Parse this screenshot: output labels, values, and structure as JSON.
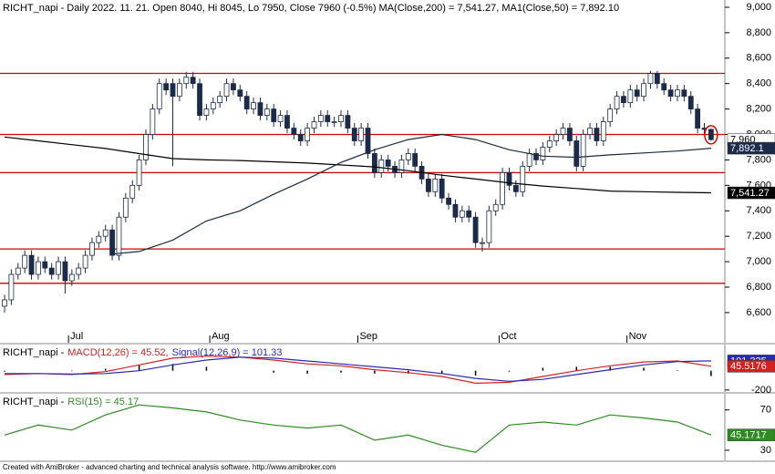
{
  "chart_data": [
    {
      "type": "candlestick",
      "title": "RICHT_napi - Daily 2022. 11. 21. Open 8040, Hi 8045, Lo 7950, Close 7960 (-0.5%) MA(Close,200) = 7,541.27, MA1(Close,50) = 7,892.10",
      "xlim": [
        -0.68,
        107.05
      ],
      "xticks": [
        {
          "value": 9.5,
          "label": "Jul"
        },
        {
          "value": 30.5,
          "label": "Aug"
        },
        {
          "value": 52.5,
          "label": "Sep"
        },
        {
          "value": 73.5,
          "label": "Oct"
        },
        {
          "value": 92.5,
          "label": "Nov"
        }
      ],
      "ylim": [
        6363,
        9057
      ],
      "yticks": [
        {
          "value": 6600,
          "label": "6,600"
        },
        {
          "value": 6800,
          "label": "6,800"
        },
        {
          "value": 7000,
          "label": "7,000"
        },
        {
          "value": 7200,
          "label": "7,200"
        },
        {
          "value": 7400,
          "label": "7,400"
        },
        {
          "value": 7600,
          "label": "7,600"
        },
        {
          "value": 7800,
          "label": "7,800"
        },
        {
          "value": 8000,
          "label": "8,000"
        },
        {
          "value": 8200,
          "label": "8,200"
        },
        {
          "value": 8400,
          "label": "8,400"
        },
        {
          "value": 8600,
          "label": "8,600"
        },
        {
          "value": 8800,
          "label": "8,800"
        },
        {
          "value": 9000,
          "label": "9,000"
        }
      ],
      "open": [
        6650,
        6700,
        6900,
        6950,
        7050,
        6900,
        7000,
        6950,
        6900,
        7000,
        6850,
        6900,
        6950,
        7050,
        7150,
        7200,
        7250,
        7050,
        7350,
        7500,
        7600,
        7800,
        8000,
        8200,
        8400,
        8400,
        8300,
        8400,
        8450,
        8400,
        8150,
        8200,
        8250,
        8300,
        8400,
        8350,
        8300,
        8200,
        8250,
        8150,
        8200,
        8100,
        8150,
        8050,
        8000,
        7950,
        8050,
        8100,
        8150,
        8100,
        8100,
        8150,
        8050,
        7950,
        8050,
        7850,
        7700,
        7800,
        7750,
        7700,
        7800,
        7850,
        7750,
        7650,
        7550,
        7650,
        7500,
        7450,
        7350,
        7400,
        7350,
        7150,
        7150,
        7400,
        7450,
        7700,
        7600,
        7550,
        7750,
        7850,
        7800,
        7900,
        7950,
        8000,
        8050,
        7950,
        7750,
        8000,
        8050,
        7950,
        8100,
        8200,
        8300,
        8250,
        8350,
        8300,
        8400,
        8480,
        8400,
        8350,
        8300,
        8350,
        8300,
        8200,
        8050,
        8040
      ],
      "high": [
        6740,
        6940,
        6990,
        7090,
        7090,
        7040,
        7040,
        6990,
        7040,
        7040,
        6940,
        6990,
        7090,
        7190,
        7240,
        7290,
        7290,
        7390,
        7540,
        7640,
        7840,
        8040,
        8240,
        8440,
        8440,
        8440,
        8440,
        8490,
        8490,
        8440,
        8240,
        8290,
        8340,
        8440,
        8440,
        8390,
        8340,
        8290,
        8290,
        8240,
        8240,
        8190,
        8190,
        8090,
        8040,
        8090,
        8140,
        8190,
        8190,
        8140,
        8190,
        8190,
        8090,
        8090,
        8090,
        7890,
        7840,
        7840,
        7790,
        7840,
        7890,
        7890,
        7790,
        7690,
        7690,
        7690,
        7540,
        7490,
        7440,
        7440,
        7390,
        7190,
        7440,
        7490,
        7740,
        7740,
        7640,
        7790,
        7890,
        7890,
        7940,
        7990,
        8040,
        8090,
        8090,
        7990,
        8040,
        8090,
        8090,
        8140,
        8240,
        8340,
        8340,
        8390,
        8390,
        8440,
        8500,
        8500,
        8440,
        8390,
        8390,
        8390,
        8340,
        8240,
        8090,
        8045
      ],
      "low": [
        6600,
        6660,
        6860,
        6910,
        6860,
        6860,
        6910,
        6860,
        6860,
        6750,
        6810,
        6860,
        6910,
        7010,
        7110,
        7160,
        7010,
        7010,
        7310,
        7460,
        7560,
        7760,
        7960,
        8160,
        8310,
        7750,
        8260,
        8360,
        8360,
        8110,
        8110,
        8160,
        8210,
        8260,
        8310,
        8260,
        8160,
        8160,
        8110,
        8110,
        8060,
        8060,
        8010,
        7960,
        7910,
        7910,
        8010,
        8060,
        8060,
        8060,
        8060,
        8010,
        7910,
        7910,
        7810,
        7660,
        7660,
        7710,
        7660,
        7660,
        7760,
        7710,
        7610,
        7510,
        7510,
        7460,
        7410,
        7310,
        7310,
        7310,
        7110,
        7080,
        7110,
        7360,
        7410,
        7560,
        7510,
        7510,
        7710,
        7760,
        7760,
        7860,
        7910,
        7960,
        7910,
        7710,
        7710,
        7960,
        7910,
        7910,
        8060,
        8160,
        8210,
        8210,
        8260,
        8260,
        8360,
        8360,
        8310,
        8260,
        8260,
        8260,
        8160,
        8010,
        8000,
        7950
      ],
      "close": [
        6700,
        6900,
        6950,
        7050,
        6900,
        7000,
        6950,
        6900,
        7000,
        6850,
        6900,
        6950,
        7050,
        7150,
        7200,
        7250,
        7050,
        7350,
        7500,
        7600,
        7800,
        8000,
        8200,
        8400,
        8350,
        8300,
        8400,
        8450,
        8400,
        8150,
        8200,
        8250,
        8300,
        8400,
        8350,
        8300,
        8200,
        8250,
        8150,
        8200,
        8100,
        8150,
        8050,
        8000,
        7950,
        8050,
        8100,
        8150,
        8100,
        8100,
        8150,
        8050,
        7950,
        8050,
        7850,
        7700,
        7800,
        7750,
        7700,
        7800,
        7850,
        7750,
        7650,
        7550,
        7650,
        7500,
        7450,
        7350,
        7400,
        7350,
        7150,
        7150,
        7400,
        7450,
        7700,
        7600,
        7550,
        7750,
        7850,
        7800,
        7900,
        7950,
        8000,
        8050,
        7950,
        7750,
        8000,
        8050,
        7950,
        8100,
        8200,
        8300,
        8250,
        8350,
        8300,
        8400,
        8480,
        8400,
        8350,
        8300,
        8350,
        8300,
        8200,
        8050,
        8040,
        7960
      ],
      "up_color": "#ffffff",
      "down_color": "#1c2b4a",
      "levels": [
        8480,
        8000,
        7700,
        7100,
        6830
      ],
      "level_color": "#d00000",
      "series": [
        {
          "color": "#000000",
          "x": [
            0,
            5,
            10,
            15,
            20,
            25,
            30,
            35,
            40,
            45,
            50,
            55,
            60,
            65,
            70,
            75,
            80,
            85,
            90,
            95,
            100,
            105
          ],
          "values": [
            7980,
            7950,
            7920,
            7890,
            7850,
            7810,
            7800,
            7795,
            7785,
            7775,
            7760,
            7745,
            7715,
            7680,
            7650,
            7620,
            7595,
            7575,
            7555,
            7550,
            7545,
            7541.27
          ]
        },
        {
          "color": "#1a2a40",
          "x": [
            16,
            20,
            25,
            30,
            35,
            40,
            45,
            50,
            55,
            60,
            65,
            70,
            75,
            80,
            85,
            90,
            95,
            100,
            105
          ],
          "values": [
            7060,
            7080,
            7170,
            7320,
            7400,
            7530,
            7650,
            7780,
            7880,
            7960,
            8000,
            7960,
            7880,
            7830,
            7820,
            7840,
            7855,
            7870,
            7892.1
          ]
        }
      ],
      "tags": [
        {
          "value": 7960,
          "label": "7,960",
          "color": "#ffffff",
          "text_color": "#000000"
        },
        {
          "value": 7892.1,
          "label": "7,892.1",
          "color": "#1c2b4a",
          "text_color": "#ffffff"
        },
        {
          "value": 7541.27,
          "label": "7,541.27",
          "color": "#000000",
          "text_color": "#ffffff"
        }
      ]
    },
    {
      "type": "line",
      "title_prefix": "RICHT_napi -",
      "xlim": [
        -0.68,
        107.05
      ],
      "ylim": [
        -220,
        270
      ],
      "yticks": [
        -200
      ],
      "series": [
        {
          "name": "MACD(12,26) = 45.52,",
          "color": "#d62020",
          "x": [
            0,
            5,
            10,
            15,
            20,
            25,
            30,
            35,
            40,
            45,
            50,
            55,
            60,
            65,
            70,
            75,
            80,
            85,
            90,
            95,
            100,
            105
          ],
          "values": [
            -40,
            -30,
            -40,
            -10,
            60,
            130,
            150,
            140,
            110,
            70,
            50,
            10,
            -20,
            -60,
            -130,
            -120,
            -60,
            0,
            50,
            90,
            100,
            45.52
          ]
        },
        {
          "name": "Signal(12,26,9) = 101.33",
          "color": "#2a2ab8",
          "x": [
            0,
            5,
            10,
            15,
            20,
            25,
            30,
            35,
            40,
            45,
            50,
            55,
            60,
            65,
            70,
            75,
            80,
            85,
            90,
            95,
            100,
            105
          ],
          "values": [
            -30,
            -30,
            -35,
            -30,
            0,
            60,
            110,
            140,
            130,
            100,
            70,
            40,
            10,
            -30,
            -80,
            -110,
            -90,
            -40,
            10,
            60,
            95,
            101.33
          ]
        }
      ],
      "histogram": {
        "color": "#000000",
        "x": [
          0,
          5,
          10,
          15,
          20,
          25,
          30,
          35,
          40,
          45,
          50,
          55,
          60,
          65,
          70,
          75,
          80,
          85,
          90,
          95,
          100,
          105
        ],
        "values": [
          -10,
          0,
          -5,
          20,
          60,
          70,
          40,
          0,
          -20,
          -30,
          -20,
          -30,
          -30,
          -30,
          -50,
          -10,
          30,
          40,
          40,
          30,
          5,
          -55.81
        ]
      },
      "tags": [
        {
          "value": 101.325,
          "label": "101.325",
          "color": "#2a2ab8",
          "text_color": "#ffffff"
        },
        {
          "value": 45.5176,
          "label": "45.5176",
          "color": "#d62020",
          "text_color": "#ffffff"
        }
      ]
    },
    {
      "type": "line",
      "title_prefix": "RICHT_napi -",
      "xlim": [
        -0.68,
        107.05
      ],
      "ylim": [
        20,
        86
      ],
      "yticks": [
        30,
        70
      ],
      "series": [
        {
          "name": "RSI(15) = 45.17",
          "color": "#2e8b22",
          "x": [
            0,
            5,
            10,
            15,
            20,
            25,
            30,
            35,
            40,
            45,
            50,
            55,
            60,
            65,
            70,
            75,
            80,
            85,
            90,
            95,
            100,
            105
          ],
          "values": [
            45,
            55,
            50,
            65,
            75,
            72,
            68,
            60,
            55,
            52,
            55,
            40,
            45,
            35,
            28,
            55,
            58,
            55,
            65,
            62,
            58,
            45.17
          ]
        }
      ],
      "tags": [
        {
          "value": 45.1717,
          "label": "45.1717",
          "color": "#2e8b22",
          "text_color": "#ffffff"
        }
      ]
    }
  ],
  "footer": "Created with AmiBroker - advanced charting and technical analysis software. http://www.amibroker.com"
}
